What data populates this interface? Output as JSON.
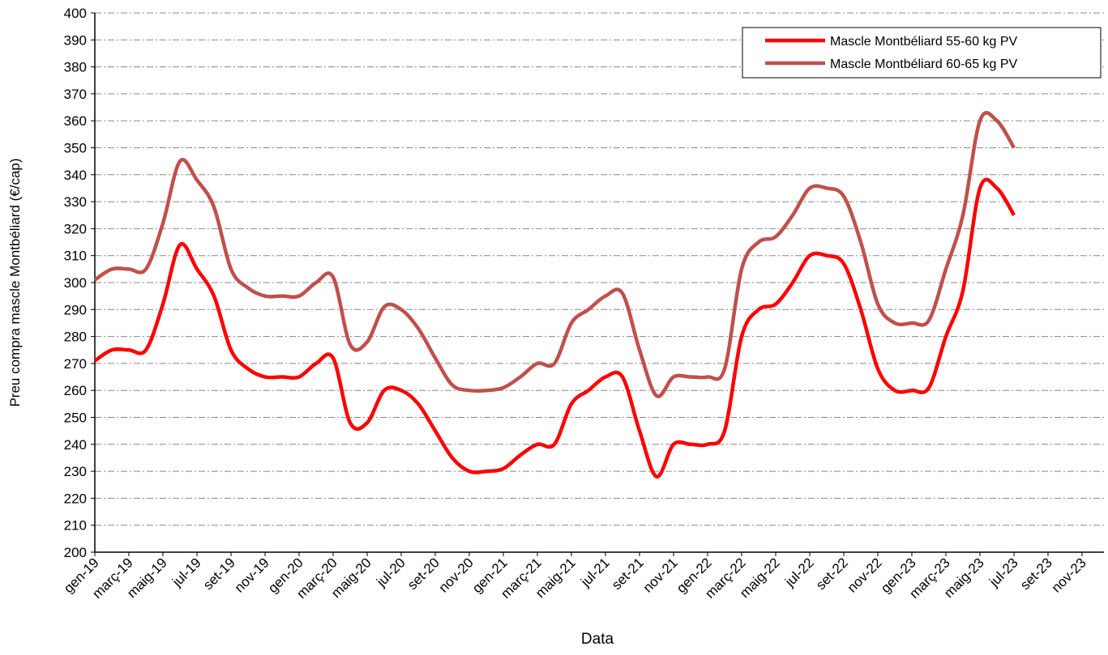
{
  "chart_data": {
    "type": "line",
    "x_label": "Data",
    "y_label": "Preu compra mascle Montbéliard (€/cap)",
    "categories": [
      "gen-19",
      null,
      "març-19",
      null,
      "maig-19",
      null,
      "jul-19",
      null,
      "set-19",
      null,
      "nov-19",
      null,
      "gen-20",
      null,
      "març-20",
      null,
      "maig-20",
      null,
      "jul-20",
      null,
      "set-20",
      null,
      "nov-20",
      null,
      "gen-21",
      null,
      "març-21",
      null,
      "maig-21",
      null,
      "jul-21",
      null,
      "set-21",
      null,
      "nov-21",
      null,
      "gen-22",
      null,
      "març-22",
      null,
      "maig-22",
      null,
      "jul-22",
      null,
      "set-22",
      null,
      "nov-22",
      null,
      "gen-23",
      null,
      "març-23",
      null,
      "maig-23",
      null,
      "jul-23",
      null,
      "set-23",
      null,
      "nov-23",
      null
    ],
    "series": [
      {
        "name": "Mascle Montbéliard 55-60 kg PV",
        "color": "#ff0000",
        "values": [
          271,
          275,
          275,
          275,
          292,
          314,
          305,
          295,
          275,
          268,
          265,
          265,
          265,
          270,
          272,
          248,
          248,
          260,
          260,
          255,
          245,
          235,
          230,
          230,
          231,
          236,
          240,
          240,
          255,
          260,
          265,
          265,
          245,
          228,
          240,
          240,
          240,
          245,
          280,
          290,
          292,
          300,
          310,
          310,
          307,
          290,
          268,
          260,
          260,
          261,
          280,
          297,
          335,
          335,
          325,
          null,
          null,
          null,
          null,
          null
        ]
      },
      {
        "name": "Mascle Montbéliard 60-65 kg PV",
        "color": "#c0504d",
        "values": [
          301,
          305,
          305,
          305,
          322,
          345,
          338,
          328,
          305,
          298,
          295,
          295,
          295,
          300,
          302,
          277,
          278,
          291,
          290,
          283,
          272,
          262,
          260,
          260,
          261,
          265,
          270,
          270,
          285,
          290,
          295,
          296,
          275,
          258,
          265,
          265,
          265,
          268,
          305,
          315,
          317,
          325,
          335,
          335,
          332,
          315,
          292,
          285,
          285,
          286,
          305,
          325,
          360,
          360,
          350,
          null,
          null,
          null,
          null,
          null
        ]
      }
    ],
    "ylim": [
      200,
      400
    ],
    "yticks": [
      200,
      210,
      220,
      230,
      240,
      250,
      260,
      270,
      280,
      290,
      300,
      310,
      320,
      330,
      340,
      350,
      360,
      370,
      380,
      390,
      400
    ],
    "grid": true,
    "legend": "top-right"
  }
}
